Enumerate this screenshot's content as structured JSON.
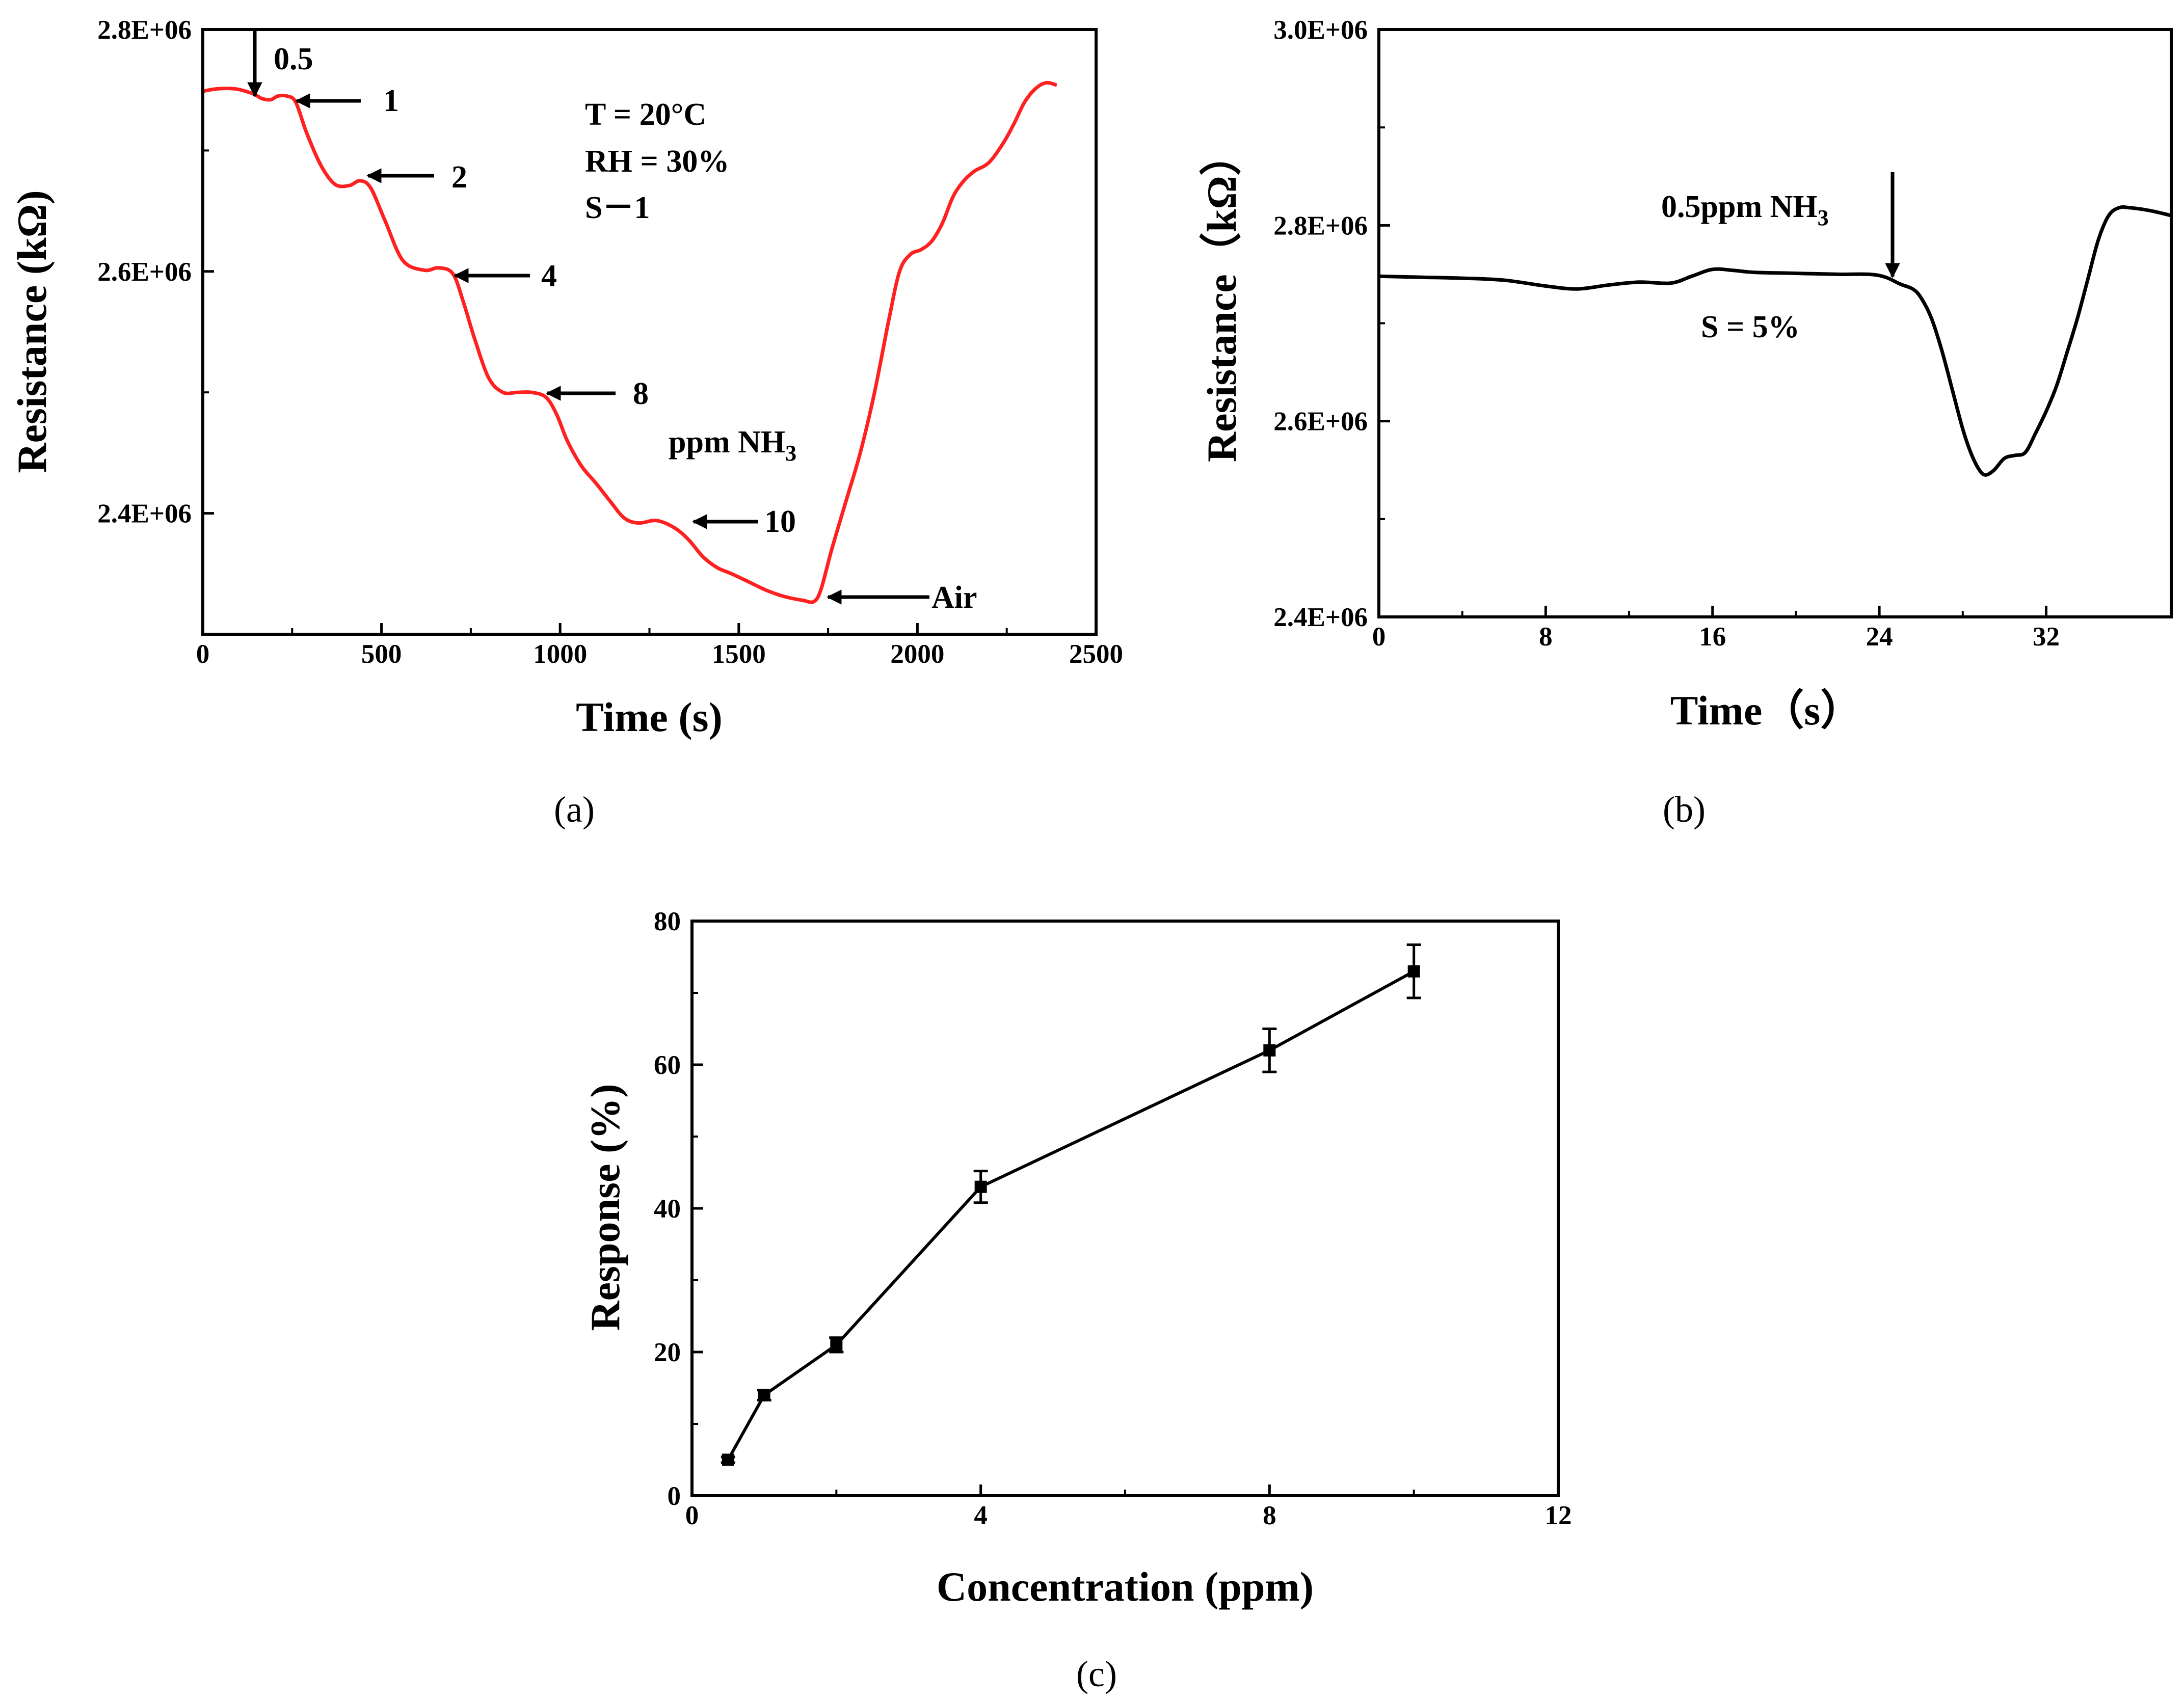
{
  "chart_data": [
    {
      "type": "line",
      "panel": "a",
      "caption": "(a)",
      "xlabel": "Time (s)",
      "ylabel": "Resistance (kΩ)",
      "xlim": [
        0,
        2500
      ],
      "ylim": [
        2300000,
        2800000
      ],
      "xticks": [
        "0",
        "500",
        "1000",
        "1500",
        "2000",
        "2500"
      ],
      "xtick_values": [
        0,
        500,
        1000,
        1500,
        2000,
        2500
      ],
      "yticks": [
        "2.8E+06",
        "2.6E+06",
        "2.4E+06"
      ],
      "ytick_values": [
        2800000,
        2600000,
        2400000
      ],
      "series": [
        {
          "name": "S-1",
          "color": "#ff2020",
          "x": [
            0,
            40,
            90,
            140,
            165,
            190,
            210,
            235,
            260,
            290,
            330,
            370,
            410,
            440,
            470,
            510,
            560,
            620,
            660,
            700,
            730,
            760,
            800,
            840,
            880,
            920,
            960,
            990,
            1020,
            1060,
            1100,
            1140,
            1180,
            1220,
            1270,
            1320,
            1360,
            1400,
            1440,
            1480,
            1530,
            1580,
            1630,
            1680,
            1710,
            1730,
            1760,
            1800,
            1840,
            1880,
            1920,
            1950,
            1980,
            2010,
            2040,
            2070,
            2100,
            2130,
            2160,
            2200,
            2240,
            2270,
            2300,
            2330,
            2360,
            2390
          ],
          "values": [
            2749000,
            2751000,
            2751000,
            2747000,
            2743000,
            2742000,
            2745000,
            2745000,
            2740000,
            2715000,
            2688000,
            2672000,
            2671000,
            2675000,
            2669000,
            2642000,
            2609000,
            2601000,
            2603000,
            2598000,
            2574000,
            2545000,
            2512000,
            2500000,
            2500000,
            2500000,
            2496000,
            2482000,
            2460000,
            2439000,
            2425000,
            2410000,
            2396000,
            2392000,
            2394000,
            2388000,
            2378000,
            2364000,
            2355000,
            2350000,
            2343000,
            2336000,
            2331000,
            2328000,
            2327000,
            2337000,
            2370000,
            2410000,
            2450000,
            2500000,
            2560000,
            2600000,
            2614000,
            2618000,
            2625000,
            2640000,
            2662000,
            2675000,
            2683000,
            2690000,
            2706000,
            2722000,
            2740000,
            2751000,
            2756000,
            2754000
          ]
        }
      ],
      "annotations": {
        "conc_labels": [
          "0.5",
          "1",
          "2",
          "4",
          "8",
          "10"
        ],
        "air_label": "Air",
        "conditions": [
          "T = 20°C",
          "RH = 30%",
          "S－1"
        ],
        "unit_label": "ppm NH",
        "unit_sub": "3"
      }
    },
    {
      "type": "line",
      "panel": "b",
      "caption": "(b)",
      "xlabel": "Time（s）",
      "ylabel": "Resistance（kΩ）",
      "xlim": [
        0,
        38
      ],
      "ylim": [
        2400000,
        3000000
      ],
      "xticks": [
        "0",
        "8",
        "16",
        "24",
        "32"
      ],
      "xtick_values": [
        0,
        8,
        16,
        24,
        32
      ],
      "yticks": [
        "3.0E+06",
        "2.8E+06",
        "2.6E+06",
        "2.4E+06"
      ],
      "ytick_values": [
        3000000,
        2800000,
        2600000,
        2400000
      ],
      "series": [
        {
          "name": "0.5ppm",
          "color": "#000000",
          "x": [
            0,
            2,
            4,
            6,
            8,
            9.5,
            11,
            12.5,
            14,
            15,
            16,
            17,
            18,
            20,
            22,
            23.5,
            24.3,
            25,
            25.6,
            26,
            26.5,
            27,
            27.5,
            28,
            28.4,
            28.8,
            29.1,
            29.5,
            30,
            30.5,
            31,
            31.5,
            32,
            32.5,
            33,
            33.5,
            34,
            34.5,
            35,
            35.5,
            36,
            37,
            38
          ],
          "values": [
            2748000,
            2747000,
            2746000,
            2744000,
            2738000,
            2735000,
            2739000,
            2742000,
            2741000,
            2748000,
            2755000,
            2754000,
            2752000,
            2751000,
            2750000,
            2750000,
            2747000,
            2740000,
            2735000,
            2726000,
            2705000,
            2672000,
            2632000,
            2592000,
            2567000,
            2550000,
            2545000,
            2550000,
            2562000,
            2565000,
            2568000,
            2588000,
            2610000,
            2636000,
            2670000,
            2705000,
            2745000,
            2785000,
            2810000,
            2818000,
            2818000,
            2815000,
            2810000
          ]
        }
      ],
      "annotations": {
        "gas_label": "0.5ppm NH",
        "gas_sub": "3",
        "response_label": "S = 5%"
      }
    },
    {
      "type": "line",
      "panel": "c",
      "caption": "(c)",
      "xlabel": "Concentration (ppm)",
      "ylabel": "Response (%)",
      "xlim": [
        0,
        12
      ],
      "ylim": [
        0,
        80
      ],
      "xticks": [
        "0",
        "4",
        "8",
        "12"
      ],
      "xtick_values": [
        0,
        4,
        8,
        12
      ],
      "yticks": [
        "0",
        "20",
        "40",
        "60",
        "80"
      ],
      "ytick_values": [
        0,
        20,
        40,
        60,
        80
      ],
      "series": [
        {
          "name": "Response",
          "color": "#000000",
          "x": [
            0.5,
            1,
            2,
            4,
            8,
            10
          ],
          "values": [
            5,
            14,
            21,
            43,
            62,
            73
          ],
          "errors": [
            0.4,
            0.7,
            1.0,
            2.2,
            3.0,
            3.7
          ]
        }
      ]
    }
  ]
}
